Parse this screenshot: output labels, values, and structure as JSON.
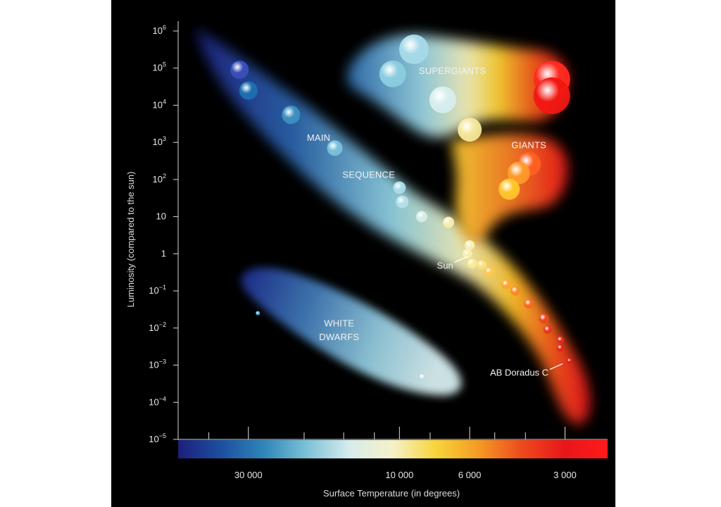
{
  "chart_data": {
    "type": "scatter",
    "title": "",
    "xlabel": "Surface Temperature (in degrees)",
    "ylabel": "Luminosity (compared to the sun)",
    "x_scale": "log-reversed",
    "y_scale": "log",
    "xlim": [
      50000,
      2200
    ],
    "ylim": [
      1e-05,
      1000000
    ],
    "y_ticks": [
      {
        "value": 1000000,
        "base": "10",
        "exp": "6"
      },
      {
        "value": 100000,
        "base": "10",
        "exp": "5"
      },
      {
        "value": 10000,
        "base": "10",
        "exp": "4"
      },
      {
        "value": 1000,
        "base": "10",
        "exp": "3"
      },
      {
        "value": 100,
        "base": "10",
        "exp": "2"
      },
      {
        "value": 10,
        "base": "10",
        "exp": ""
      },
      {
        "value": 1,
        "base": "1",
        "exp": ""
      },
      {
        "value": 0.1,
        "base": "10",
        "exp": "−1"
      },
      {
        "value": 0.01,
        "base": "10",
        "exp": "−2"
      },
      {
        "value": 0.001,
        "base": "10",
        "exp": "−3"
      },
      {
        "value": 0.0001,
        "base": "10",
        "exp": "−4"
      },
      {
        "value": 1e-05,
        "base": "10",
        "exp": "−5"
      }
    ],
    "x_tick_labels": [
      {
        "value": 30000,
        "label": "30 000"
      },
      {
        "value": 10000,
        "label": "10 000"
      },
      {
        "value": 6000,
        "label": "6 000"
      },
      {
        "value": 3000,
        "label": "3 000"
      }
    ],
    "x_minor_ticks": [
      40000,
      20000,
      15000,
      12000,
      8000,
      5000,
      4000
    ],
    "region_labels": [
      {
        "text": "SUPERGIANTS",
        "temp": 6800,
        "lum": 70000
      },
      {
        "text": "GIANTS",
        "temp": 3900,
        "lum": 700
      },
      {
        "text": "MAIN",
        "temp": 18000,
        "lum": 1100
      },
      {
        "text": "SEQUENCE",
        "temp": 12500,
        "lum": 110
      },
      {
        "text": "WHITE",
        "temp": 15500,
        "lum": 0.011
      },
      {
        "text": "DWARFS",
        "temp": 15500,
        "lum": 0.0047
      }
    ],
    "annotations": [
      {
        "text": "Sun",
        "temp": 5800,
        "lum": 1
      },
      {
        "text": "AB Doradus C",
        "temp": 2900,
        "lum": 0.0013
      }
    ],
    "stars": [
      {
        "temp": 32000,
        "lum": 90000,
        "size": 13,
        "color": "#3a4fb8"
      },
      {
        "temp": 30000,
        "lum": 25000,
        "size": 13,
        "color": "#1e6fb0"
      },
      {
        "temp": 22000,
        "lum": 5500,
        "size": 13,
        "color": "#3f8fc0"
      },
      {
        "temp": 16000,
        "lum": 700,
        "size": 11,
        "color": "#79c0dc"
      },
      {
        "temp": 10500,
        "lum": 70000,
        "size": 19,
        "color": "#8ccde0"
      },
      {
        "temp": 9000,
        "lum": 320000,
        "size": 21,
        "color": "#a6dae8"
      },
      {
        "temp": 7300,
        "lum": 14000,
        "size": 19,
        "color": "#d8eeee"
      },
      {
        "temp": 6000,
        "lum": 2200,
        "size": 17,
        "color": "#f5e79a"
      },
      {
        "temp": 3300,
        "lum": 50000,
        "size": 26,
        "color": "#ff2a1e"
      },
      {
        "temp": 3300,
        "lum": 18000,
        "size": 26,
        "color": "#f21812"
      },
      {
        "temp": 3900,
        "lum": 260,
        "size": 17,
        "color": "#ff5f22"
      },
      {
        "temp": 4200,
        "lum": 150,
        "size": 16,
        "color": "#ff9a2a"
      },
      {
        "temp": 4500,
        "lum": 55,
        "size": 15,
        "color": "#ffc52a"
      },
      {
        "temp": 10000,
        "lum": 60,
        "size": 9,
        "color": "#a9dbe8"
      },
      {
        "temp": 9800,
        "lum": 25,
        "size": 9,
        "color": "#b4e0e8"
      },
      {
        "temp": 8500,
        "lum": 10,
        "size": 8,
        "color": "#d7ecea"
      },
      {
        "temp": 7000,
        "lum": 7,
        "size": 8,
        "color": "#f4ecb0"
      },
      {
        "temp": 6000,
        "lum": 1.7,
        "size": 7,
        "color": "#f7f0b8"
      },
      {
        "temp": 6100,
        "lum": 1,
        "size": 7,
        "color": "#f7eea8"
      },
      {
        "temp": 5900,
        "lum": 0.55,
        "size": 7,
        "color": "#f9eb98"
      },
      {
        "temp": 5500,
        "lum": 0.5,
        "size": 7,
        "color": "#fbe07a"
      },
      {
        "temp": 5200,
        "lum": 0.33,
        "size": 7,
        "color": "#fbc94a"
      },
      {
        "temp": 4600,
        "lum": 0.15,
        "size": 7,
        "color": "#fba72c"
      },
      {
        "temp": 4300,
        "lum": 0.1,
        "size": 7,
        "color": "#f98b24"
      },
      {
        "temp": 3900,
        "lum": 0.045,
        "size": 7,
        "color": "#f56a1e"
      },
      {
        "temp": 3500,
        "lum": 0.018,
        "size": 7,
        "color": "#ef461a"
      },
      {
        "temp": 3400,
        "lum": 0.009,
        "size": 6,
        "color": "#eb3418"
      },
      {
        "temp": 3100,
        "lum": 0.0048,
        "size": 5,
        "color": "#e82a16"
      },
      {
        "temp": 3100,
        "lum": 0.0029,
        "size": 5,
        "color": "#e42214"
      },
      {
        "temp": 2900,
        "lum": 0.0013,
        "size": 4,
        "color": "#e01a12"
      },
      {
        "temp": 28000,
        "lum": 0.025,
        "size": 3,
        "color": "#4fb0e0"
      },
      {
        "temp": 8500,
        "lum": 0.0005,
        "size": 3,
        "color": "#f2f2f2"
      }
    ],
    "temperature_color_bar": [
      "#1c1f7a",
      "#1c4fa0",
      "#2f86b8",
      "#7cc2d8",
      "#d8ecec",
      "#f5f1c8",
      "#f7d53a",
      "#f49a24",
      "#ee4a1c",
      "#e8161a",
      "#ff1a1a"
    ],
    "grid": false,
    "legend": "none"
  }
}
